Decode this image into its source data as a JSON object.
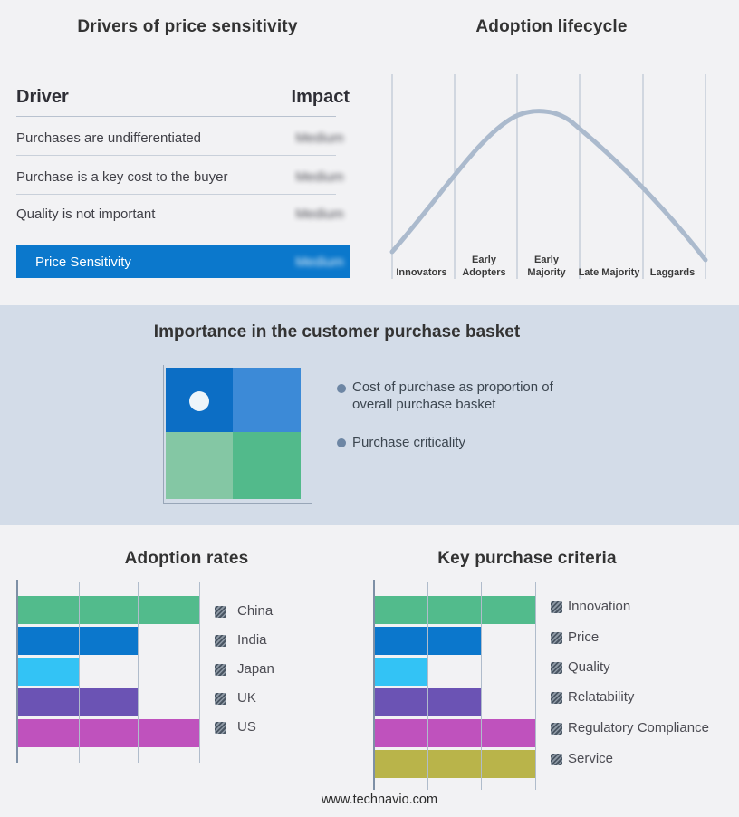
{
  "drivers": {
    "title": "Drivers of price sensitivity",
    "columns": {
      "driver": "Driver",
      "impact": "Impact"
    },
    "rows": [
      {
        "driver": "Purchases are undifferentiated",
        "impact": "Medium",
        "blurred": true
      },
      {
        "driver": "Purchase is a key cost to the buyer",
        "impact": "Medium",
        "blurred": true
      },
      {
        "driver": "Quality is not important",
        "impact": "Medium",
        "blurred": true
      }
    ],
    "summary": {
      "label": "Price Sensitivity",
      "impact": "Medium",
      "blurred": true,
      "bar_color": "#0b78cc"
    }
  },
  "lifecycle": {
    "title": "Adoption lifecycle",
    "stages": [
      "Innovators",
      "Early Adopters",
      "Early Majority",
      "Late Majority",
      "Laggards"
    ],
    "curve_color": "#abbacd",
    "grid_color": "#b0bccb"
  },
  "basket": {
    "title": "Importance in the customer purchase basket",
    "bullets": [
      "Cost of purchase as proportion of overall purchase basket",
      "Purchase criticality"
    ],
    "quadrant_colors": {
      "top_left": "#0c6ec5",
      "top_right": "#3c8ad7",
      "bottom_left": "#84c7a4",
      "bottom_right": "#52ba8b"
    },
    "band_color": "#d3dce8"
  },
  "footer": {
    "url": "www.technavio.com"
  },
  "chart_data": [
    {
      "type": "table",
      "title": "Drivers of price sensitivity",
      "columns": [
        "Driver",
        "Impact"
      ],
      "rows": [
        [
          "Purchases are undifferentiated",
          "Medium"
        ],
        [
          "Purchase is a key cost to the buyer",
          "Medium"
        ],
        [
          "Quality is not important",
          "Medium"
        ],
        [
          "Price Sensitivity",
          "Medium"
        ]
      ],
      "note": "Impact values are blurred/redacted in the image"
    },
    {
      "type": "line",
      "title": "Adoption lifecycle",
      "categories": [
        "Innovators",
        "Early Adopters",
        "Early Majority",
        "Late Majority",
        "Laggards"
      ],
      "shape": "bell curve peaking over Early Majority",
      "grid": true,
      "legend_position": "none"
    },
    {
      "type": "bar",
      "orientation": "horizontal",
      "title": "Adoption rates",
      "categories": [
        "China",
        "India",
        "Japan",
        "UK",
        "US"
      ],
      "values": [
        3,
        2,
        1,
        2,
        3
      ],
      "xlim": [
        0,
        3
      ],
      "colors": [
        "#52bb8c",
        "#0b77cc",
        "#33c3f5",
        "#6b53b4",
        "#bf52bd"
      ],
      "grid": true,
      "legend_position": "right"
    },
    {
      "type": "bar",
      "orientation": "horizontal",
      "title": "Key purchase criteria",
      "categories": [
        "Innovation",
        "Price",
        "Quality",
        "Relatability",
        "Regulatory Compliance",
        "Service"
      ],
      "values": [
        3,
        2,
        1,
        2,
        3,
        3
      ],
      "xlim": [
        0,
        3
      ],
      "colors": [
        "#52bb8c",
        "#0b77cc",
        "#33c3f5",
        "#6b53b4",
        "#bf52bd",
        "#b9b44a"
      ],
      "grid": true,
      "legend_position": "right"
    }
  ]
}
